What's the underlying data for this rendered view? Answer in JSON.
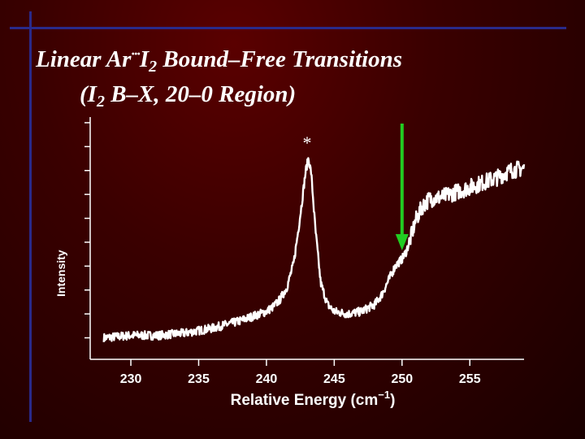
{
  "slide": {
    "title_part1": "Linear Ar",
    "title_dots": "···",
    "title_part2": "I",
    "title_sub1": "2",
    "title_part3": " Bound–Free Transitions",
    "subtitle_open": "(I",
    "subtitle_sub": "2",
    "subtitle_rest": " B–X, 20–0 Region)"
  },
  "colors": {
    "background": "#3a0000",
    "trace": "#ffffff",
    "arrow": "#22cc22",
    "rule_lines": "#2a2a8a",
    "axis": "#ffffff"
  },
  "chart_data": {
    "type": "line",
    "xlabel": "Relative Energy (cm⁻¹)",
    "ylabel": "Intensity",
    "xlim": [
      227,
      259
    ],
    "ylim": [
      0,
      1
    ],
    "x_ticks": [
      230,
      235,
      240,
      245,
      250,
      255
    ],
    "y_ticks_count": 10,
    "grid": false,
    "series": [
      {
        "x": [
          228,
          230,
          232,
          234,
          236,
          238,
          239,
          240,
          240.5,
          241,
          241.5,
          242,
          242.3,
          242.6,
          242.9,
          243.1,
          243.3,
          243.6,
          244,
          244.5,
          245,
          246,
          247,
          248,
          248.5,
          249,
          249.5,
          250,
          250.3,
          250.6,
          251,
          251.5,
          252,
          253,
          254,
          255,
          256,
          257,
          258,
          259
        ],
        "y": [
          0.09,
          0.1,
          0.1,
          0.11,
          0.13,
          0.16,
          0.18,
          0.2,
          0.22,
          0.25,
          0.3,
          0.4,
          0.52,
          0.65,
          0.79,
          0.84,
          0.78,
          0.55,
          0.32,
          0.23,
          0.2,
          0.19,
          0.2,
          0.23,
          0.27,
          0.33,
          0.39,
          0.42,
          0.45,
          0.5,
          0.58,
          0.64,
          0.67,
          0.68,
          0.7,
          0.72,
          0.74,
          0.76,
          0.79,
          0.8
        ]
      }
    ],
    "annotations": [
      {
        "text": "*",
        "x": 243
      },
      {
        "type": "arrow",
        "x": 250
      }
    ]
  }
}
